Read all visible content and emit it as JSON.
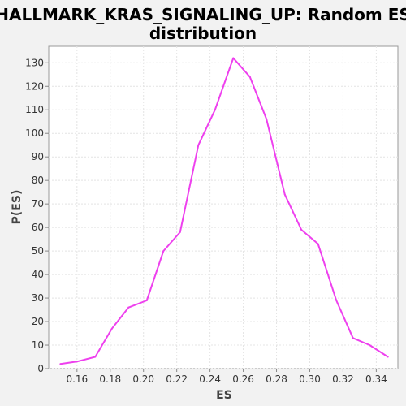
{
  "chart_data": {
    "type": "line",
    "title_line1": "HALLMARK_KRAS_SIGNALING_UP: Random ES",
    "title_line2": "distribution",
    "xlabel": "ES",
    "ylabel": "P(ES)",
    "xlim": [
      0.143,
      0.353
    ],
    "ylim": [
      0,
      137
    ],
    "x_ticks": [
      0.16,
      0.18,
      0.2,
      0.22,
      0.24,
      0.26,
      0.28,
      0.3,
      0.32,
      0.34
    ],
    "x_tick_labels": [
      "0.16",
      "0.18",
      "0.20",
      "0.22",
      "0.24",
      "0.26",
      "0.28",
      "0.30",
      "0.32",
      "0.34"
    ],
    "y_ticks": [
      0,
      10,
      20,
      30,
      40,
      50,
      60,
      70,
      80,
      90,
      100,
      110,
      120,
      130
    ],
    "y_tick_labels": [
      "0",
      "10",
      "20",
      "30",
      "40",
      "50",
      "60",
      "70",
      "80",
      "90",
      "100",
      "110",
      "120",
      "130"
    ],
    "grid": true,
    "series": [
      {
        "color": "#ee40ee",
        "x": [
          0.15,
          0.16,
          0.171,
          0.181,
          0.191,
          0.202,
          0.212,
          0.222,
          0.233,
          0.243,
          0.254,
          0.264,
          0.274,
          0.285,
          0.295,
          0.305,
          0.316,
          0.326,
          0.336,
          0.347
        ],
        "y": [
          2,
          3,
          5,
          17,
          26,
          29,
          50,
          58,
          95,
          110,
          132,
          124,
          106,
          74,
          59,
          53,
          29,
          13,
          10,
          5
        ]
      }
    ]
  }
}
